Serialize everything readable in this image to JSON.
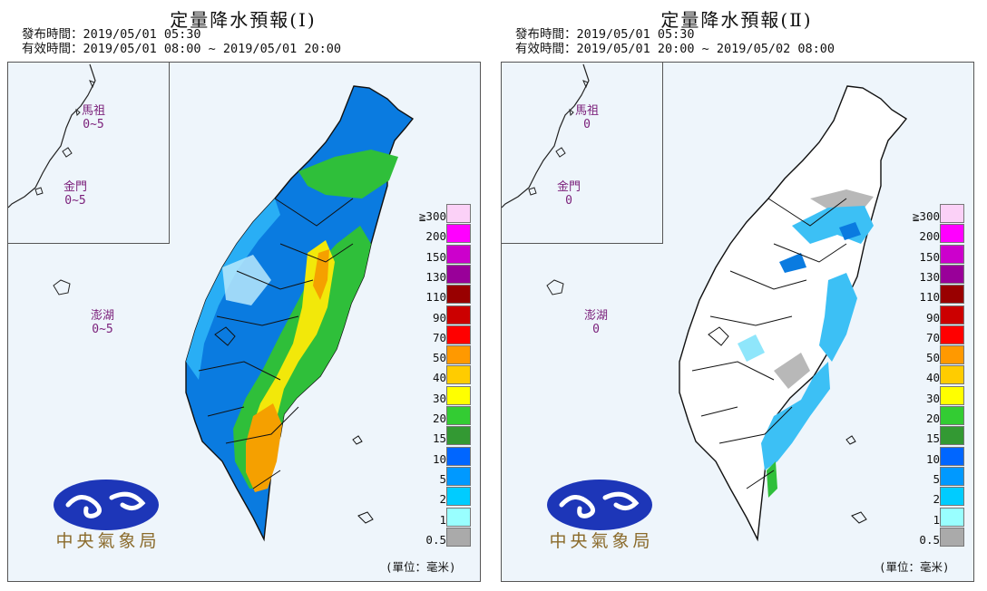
{
  "panels": [
    {
      "title": "定量降水預報(Ⅰ)",
      "issue_line": "發布時間：2019/05/01 05:30",
      "valid_line": "有效時間：2019/05/01 08:00 ~ 2019/05/01 20:00",
      "islands": [
        {
          "name": "馬祖",
          "value": "0~5"
        },
        {
          "name": "金門",
          "value": "0~5"
        },
        {
          "name": "澎湖",
          "value": "0~5"
        }
      ],
      "agency": "中央氣象局",
      "unit": "(單位：毫米)"
    },
    {
      "title": "定量降水預報(Ⅱ)",
      "issue_line": "發布時間：2019/05/01 05:30",
      "valid_line": "有效時間：2019/05/01 20:00 ~ 2019/05/02 08:00",
      "islands": [
        {
          "name": "馬祖",
          "value": "0"
        },
        {
          "name": "金門",
          "value": "0"
        },
        {
          "name": "澎湖",
          "value": "0"
        }
      ],
      "agency": "中央氣象局",
      "unit": "(單位：毫米)"
    }
  ],
  "legend": [
    {
      "label": "≧300",
      "color": "#fbd1f7"
    },
    {
      "label": "200",
      "color": "#ff00ff"
    },
    {
      "label": "150",
      "color": "#cc00cc"
    },
    {
      "label": "130",
      "color": "#990099"
    },
    {
      "label": "110",
      "color": "#990000"
    },
    {
      "label": "90",
      "color": "#cc0000"
    },
    {
      "label": "70",
      "color": "#ff0000"
    },
    {
      "label": "50",
      "color": "#ff9900"
    },
    {
      "label": "40",
      "color": "#ffcc00"
    },
    {
      "label": "30",
      "color": "#ffff00"
    },
    {
      "label": "20",
      "color": "#33cc33"
    },
    {
      "label": "15",
      "color": "#339933"
    },
    {
      "label": "10",
      "color": "#0066ff"
    },
    {
      "label": "5",
      "color": "#0099ff"
    },
    {
      "label": "2",
      "color": "#00ccff"
    },
    {
      "label": "1",
      "color": "#99ffff"
    },
    {
      "label": "0.5",
      "color": "#aaaaaa"
    }
  ]
}
